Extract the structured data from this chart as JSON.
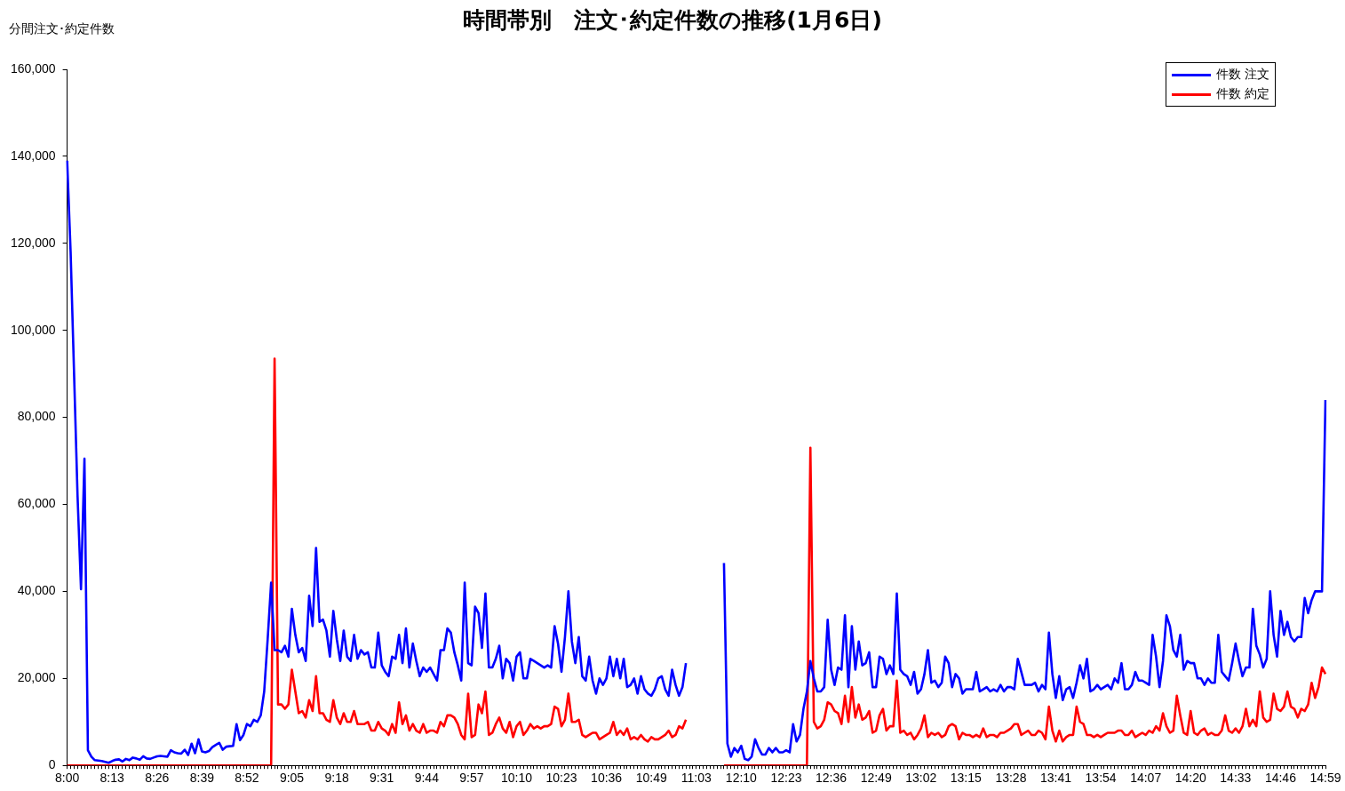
{
  "chart_data": {
    "type": "line",
    "title": "時間帯別　注文･約定件数の推移(1月6日)",
    "ylabel": "分間注文･約定件数",
    "categories": [
      "8:00",
      null,
      null,
      null,
      null,
      null,
      null,
      null,
      null,
      null,
      null,
      null,
      null,
      "8:13",
      null,
      null,
      null,
      null,
      null,
      null,
      null,
      null,
      null,
      null,
      null,
      null,
      "8:26",
      null,
      null,
      null,
      null,
      null,
      null,
      null,
      null,
      null,
      null,
      null,
      null,
      "8:39",
      null,
      null,
      null,
      null,
      null,
      null,
      null,
      null,
      null,
      null,
      null,
      null,
      "8:52",
      null,
      null,
      null,
      null,
      null,
      null,
      null,
      null,
      null,
      null,
      null,
      null,
      "9:05",
      null,
      null,
      null,
      null,
      null,
      null,
      null,
      null,
      null,
      null,
      null,
      null,
      "9:18",
      null,
      null,
      null,
      null,
      null,
      null,
      null,
      null,
      null,
      null,
      null,
      null,
      "9:31",
      null,
      null,
      null,
      null,
      null,
      null,
      null,
      null,
      null,
      null,
      null,
      null,
      "9:44",
      null,
      null,
      null,
      null,
      null,
      null,
      null,
      null,
      null,
      null,
      null,
      null,
      "9:57",
      null,
      null,
      null,
      null,
      null,
      null,
      null,
      null,
      null,
      null,
      null,
      null,
      "10:10",
      null,
      null,
      null,
      null,
      null,
      null,
      null,
      null,
      null,
      null,
      null,
      null,
      "10:23",
      null,
      null,
      null,
      null,
      null,
      null,
      null,
      null,
      null,
      null,
      null,
      null,
      "10:36",
      null,
      null,
      null,
      null,
      null,
      null,
      null,
      null,
      null,
      null,
      null,
      null,
      "10:49",
      null,
      null,
      null,
      null,
      null,
      null,
      null,
      null,
      null,
      null,
      null,
      null,
      "11:03",
      null,
      null,
      null,
      null,
      null,
      null,
      null,
      null,
      null,
      null,
      null,
      null,
      "12:10",
      null,
      null,
      null,
      null,
      null,
      null,
      null,
      null,
      null,
      null,
      null,
      null,
      "12:23",
      null,
      null,
      null,
      null,
      null,
      null,
      null,
      null,
      null,
      null,
      null,
      null,
      "12:36",
      null,
      null,
      null,
      null,
      null,
      null,
      null,
      null,
      null,
      null,
      null,
      null,
      "12:49",
      null,
      null,
      null,
      null,
      null,
      null,
      null,
      null,
      null,
      null,
      null,
      null,
      "13:02",
      null,
      null,
      null,
      null,
      null,
      null,
      null,
      null,
      null,
      null,
      null,
      null,
      "13:15",
      null,
      null,
      null,
      null,
      null,
      null,
      null,
      null,
      null,
      null,
      null,
      null,
      "13:28",
      null,
      null,
      null,
      null,
      null,
      null,
      null,
      null,
      null,
      null,
      null,
      null,
      "13:41",
      null,
      null,
      null,
      null,
      null,
      null,
      null,
      null,
      null,
      null,
      null,
      null,
      "13:54",
      null,
      null,
      null,
      null,
      null,
      null,
      null,
      null,
      null,
      null,
      null,
      null,
      "14:07",
      null,
      null,
      null,
      null,
      null,
      null,
      null,
      null,
      null,
      null,
      null,
      null,
      "14:20",
      null,
      null,
      null,
      null,
      null,
      null,
      null,
      null,
      null,
      null,
      null,
      null,
      "14:33",
      null,
      null,
      null,
      null,
      null,
      null,
      null,
      null,
      null,
      null,
      null,
      null,
      "14:46",
      null,
      null,
      null,
      null,
      null,
      null,
      null,
      null,
      null,
      null,
      null,
      null,
      "14:59"
    ],
    "series": [
      {
        "name": "件数 注文",
        "color": "#0000ff",
        "values": [
          139000,
          118000,
          90000,
          62000,
          40500,
          70500,
          3500,
          2000,
          1200,
          1100,
          1000,
          800,
          600,
          1000,
          1300,
          1400,
          900,
          1500,
          1200,
          1800,
          1600,
          1300,
          2100,
          1600,
          1500,
          1800,
          2100,
          2200,
          2100,
          2000,
          3500,
          3000,
          2800,
          2700,
          3600,
          2400,
          5000,
          2800,
          6000,
          3200,
          3000,
          3300,
          4200,
          4700,
          5200,
          3600,
          4300,
          4400,
          4500,
          9500,
          5800,
          7000,
          9500,
          9000,
          10500,
          10000,
          11500,
          17000,
          29000,
          42000,
          26500,
          26500,
          26000,
          27500,
          25000,
          36000,
          30000,
          26000,
          27000,
          24000,
          39000,
          32000,
          50000,
          33000,
          33500,
          31000,
          25000,
          35500,
          29000,
          24000,
          31000,
          25000,
          24000,
          30000,
          24500,
          26500,
          25500,
          26000,
          22500,
          22500,
          30500,
          23000,
          21500,
          20500,
          25000,
          24500,
          30000,
          23500,
          31500,
          22500,
          28000,
          24000,
          20500,
          22500,
          21500,
          22500,
          21000,
          19500,
          26500,
          26500,
          31500,
          30500,
          26000,
          23000,
          19500,
          42000,
          23500,
          23000,
          36500,
          35000,
          27000,
          39500,
          22500,
          22500,
          24500,
          27500,
          20000,
          24500,
          23500,
          19500,
          25000,
          26000,
          20000,
          20000,
          24500,
          24000,
          23500,
          23000,
          22500,
          23000,
          22500,
          32000,
          28000,
          21500,
          29500,
          40000,
          28500,
          23500,
          29500,
          20500,
          19500,
          25000,
          19500,
          16500,
          20000,
          18500,
          20000,
          25000,
          20500,
          24500,
          20000,
          24500,
          18000,
          18500,
          20000,
          16500,
          20500,
          17500,
          16500,
          16000,
          17500,
          20000,
          20500,
          17500,
          16000,
          22000,
          18500,
          16000,
          18000,
          23500,
          null,
          null,
          null,
          null,
          null,
          null,
          null,
          null,
          null,
          null,
          46500,
          5000,
          2000,
          4000,
          3000,
          4500,
          1500,
          1200,
          2000,
          6000,
          4000,
          2500,
          2500,
          4000,
          3000,
          4000,
          3000,
          3000,
          3500,
          3000,
          9500,
          5500,
          7000,
          13000,
          17000,
          24000,
          20000,
          17000,
          17000,
          18000,
          33500,
          22000,
          18500,
          22500,
          22000,
          34500,
          18000,
          32000,
          22000,
          28500,
          23000,
          23500,
          26000,
          18000,
          18000,
          25000,
          24500,
          21000,
          23000,
          21000,
          39500,
          22000,
          21000,
          20500,
          18500,
          21500,
          16500,
          17500,
          21000,
          26500,
          19000,
          19500,
          18000,
          19000,
          25000,
          23500,
          18000,
          21000,
          20000,
          16500,
          17500,
          17500,
          17500,
          21500,
          17000,
          17500,
          18000,
          17000,
          17500,
          17000,
          18500,
          17000,
          18000,
          18000,
          17500,
          24500,
          21500,
          18500,
          18500,
          18500,
          19000,
          17000,
          18500,
          17500,
          30500,
          21000,
          15500,
          20500,
          15000,
          17500,
          18000,
          15500,
          19000,
          23000,
          20000,
          24500,
          17000,
          17500,
          18500,
          17500,
          18000,
          18500,
          17500,
          20000,
          19000,
          23500,
          17500,
          17500,
          18500,
          21500,
          19500,
          19500,
          19000,
          18500,
          30000,
          25000,
          18000,
          24000,
          34500,
          32000,
          26500,
          25000,
          30000,
          22000,
          24000,
          23500,
          23500,
          20000,
          20000,
          18500,
          20000,
          19000,
          19000,
          30000,
          21500,
          20500,
          19500,
          23500,
          28000,
          24000,
          20500,
          22500,
          22500,
          36000,
          27500,
          25500,
          22500,
          24500,
          40000,
          30000,
          25000,
          35500,
          30000,
          33000,
          29500,
          28500,
          29500,
          29500,
          38500,
          35000,
          38000,
          40000,
          40000,
          40000,
          84000
        ]
      },
      {
        "name": "件数 約定",
        "color": "#ff0000",
        "values": [
          0,
          0,
          0,
          0,
          0,
          0,
          0,
          0,
          0,
          0,
          0,
          0,
          0,
          0,
          0,
          0,
          0,
          0,
          0,
          0,
          0,
          0,
          0,
          0,
          0,
          0,
          0,
          0,
          0,
          0,
          0,
          0,
          0,
          0,
          0,
          0,
          0,
          0,
          0,
          0,
          0,
          0,
          0,
          0,
          0,
          0,
          0,
          0,
          0,
          0,
          0,
          0,
          0,
          0,
          0,
          0,
          0,
          0,
          0,
          0,
          93500,
          14000,
          14000,
          13000,
          14000,
          22000,
          17000,
          12000,
          12500,
          11000,
          15000,
          12500,
          20500,
          12000,
          12000,
          10500,
          10000,
          15000,
          11000,
          9500,
          12000,
          10000,
          10000,
          12500,
          9500,
          9500,
          9500,
          10000,
          8000,
          8000,
          10000,
          8500,
          8000,
          7000,
          9500,
          7500,
          14500,
          9500,
          11500,
          8000,
          9500,
          8000,
          7500,
          9500,
          7500,
          8000,
          8000,
          7500,
          10000,
          9000,
          11500,
          11500,
          11000,
          9500,
          7000,
          6000,
          16500,
          6500,
          7000,
          14000,
          12000,
          17000,
          7000,
          7500,
          9500,
          11000,
          8500,
          7500,
          10000,
          6500,
          9000,
          10000,
          7000,
          8000,
          9500,
          8500,
          9000,
          8500,
          9000,
          9000,
          9500,
          13500,
          13000,
          9000,
          10500,
          16500,
          10000,
          10000,
          10500,
          7000,
          6500,
          7000,
          7500,
          7500,
          6000,
          6500,
          7000,
          7500,
          10000,
          7000,
          8000,
          7000,
          8500,
          6000,
          6500,
          6000,
          7000,
          6000,
          5500,
          6500,
          6000,
          6000,
          6500,
          7000,
          8000,
          6500,
          7000,
          9000,
          8500,
          10500,
          null,
          null,
          null,
          null,
          null,
          null,
          null,
          null,
          null,
          null,
          0,
          0,
          0,
          0,
          0,
          0,
          0,
          0,
          0,
          0,
          0,
          0,
          0,
          0,
          0,
          0,
          0,
          0,
          0,
          0,
          0,
          0,
          0,
          0,
          0,
          73000,
          10000,
          8500,
          9000,
          10500,
          14500,
          14000,
          12500,
          12000,
          9500,
          16000,
          10000,
          18000,
          11000,
          14000,
          10500,
          11000,
          12500,
          7500,
          8000,
          11500,
          13000,
          8000,
          9000,
          9000,
          19500,
          7500,
          8000,
          7000,
          7500,
          6000,
          7000,
          8500,
          11500,
          6500,
          7500,
          7000,
          7500,
          6500,
          7000,
          9000,
          9500,
          9000,
          6000,
          7500,
          7000,
          7000,
          6500,
          7000,
          6500,
          8500,
          6500,
          7000,
          7000,
          6500,
          7500,
          7500,
          8000,
          8500,
          9500,
          9500,
          7000,
          7500,
          8000,
          7000,
          7000,
          8000,
          7500,
          6000,
          13500,
          8000,
          5500,
          8000,
          5500,
          6500,
          7000,
          7000,
          13500,
          10000,
          9500,
          7000,
          7000,
          6500,
          7000,
          6500,
          7000,
          7500,
          7500,
          7500,
          8000,
          8000,
          7000,
          7000,
          8000,
          6500,
          7000,
          7500,
          7000,
          8000,
          7500,
          9000,
          8000,
          12000,
          9000,
          7500,
          8000,
          16000,
          11500,
          7500,
          7000,
          12500,
          7500,
          7000,
          8000,
          8500,
          7000,
          7500,
          7000,
          7000,
          8000,
          11500,
          8000,
          7500,
          8500,
          7500,
          9000,
          13000,
          9000,
          10500,
          9000,
          17000,
          11000,
          10000,
          10500,
          16500,
          13000,
          12500,
          13500,
          17000,
          13500,
          13000,
          11000,
          13000,
          12500,
          14000,
          19000,
          15500,
          18000,
          22500,
          21000
        ]
      }
    ],
    "ylim": [
      0,
      160000
    ],
    "yticks": [
      {
        "value": 0,
        "label": "0"
      },
      {
        "value": 20000,
        "label": "20,000"
      },
      {
        "value": 40000,
        "label": "40,000"
      },
      {
        "value": 60000,
        "label": "60,000"
      },
      {
        "value": 80000,
        "label": "80,000"
      },
      {
        "value": 100000,
        "label": "100,000"
      },
      {
        "value": 120000,
        "label": "120,000"
      },
      {
        "value": 140000,
        "label": "140,000"
      },
      {
        "value": 160000,
        "label": "160,000"
      }
    ],
    "grid": false,
    "legend": "top right",
    "marker": "none",
    "line_style": "solid"
  }
}
